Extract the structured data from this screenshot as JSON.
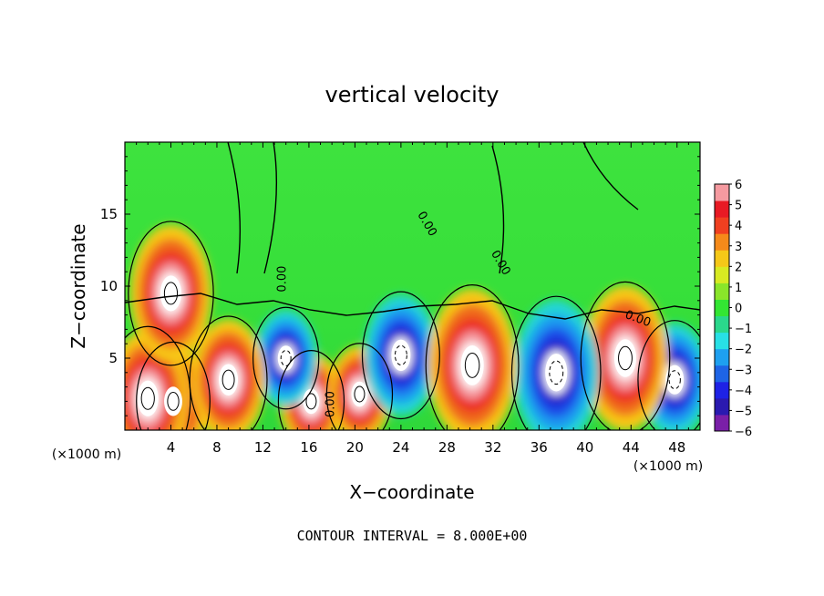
{
  "chart_data": {
    "type": "heatmap",
    "title": "vertical velocity",
    "xlabel": "X−coordinate",
    "ylabel": "Z−coordinate",
    "x_unit": "(×1000 m)",
    "x_range": [
      0,
      50
    ],
    "y_range": [
      0,
      20
    ],
    "x_ticks": [
      "4",
      "8",
      "12",
      "16",
      "20",
      "24",
      "28",
      "32",
      "36",
      "40",
      "44",
      "48"
    ],
    "y_ticks": [
      "5",
      "10",
      "15"
    ],
    "colorbar": {
      "ticks": [
        "6",
        "5",
        "4",
        "3",
        "2",
        "1",
        "0",
        "−1",
        "−2",
        "−3",
        "−4",
        "−5",
        "−6"
      ],
      "range": [
        -6,
        6
      ],
      "colors": [
        "#7a1fa8",
        "#2a1ab0",
        "#1e22e6",
        "#1e64e6",
        "#1ea0f0",
        "#28e0e6",
        "#2ad88c",
        "#33e633",
        "#8ae52a",
        "#d8ea22",
        "#f5c818",
        "#f58a1a",
        "#f04020",
        "#e81a24",
        "#f59aa0"
      ]
    },
    "contour_labels": [
      "0.00",
      "0.00",
      "0.00",
      "0.00",
      "0.00"
    ],
    "contour_interval_text": "CONTOUR INTERVAL = 8.000E+00",
    "cells": [
      {
        "x": 2,
        "z": 2.2,
        "v": 12
      },
      {
        "x": 4.2,
        "z": 2.0,
        "v": 9
      },
      {
        "x": 4.0,
        "z": 9.5,
        "v": 12
      },
      {
        "x": 9.0,
        "z": 3.5,
        "v": 10
      },
      {
        "x": 16.2,
        "z": 2.0,
        "v": 7
      },
      {
        "x": 20.4,
        "z": 2.5,
        "v": 7
      },
      {
        "x": 30.2,
        "z": 4.5,
        "v": 14
      },
      {
        "x": 43.5,
        "z": 5.0,
        "v": 13
      },
      {
        "x": 14.0,
        "z": 5.0,
        "v": -7
      },
      {
        "x": 24.0,
        "z": 5.2,
        "v": -10
      },
      {
        "x": 37.5,
        "z": 4.0,
        "v": -13
      },
      {
        "x": 47.8,
        "z": 3.5,
        "v": -9
      }
    ]
  }
}
